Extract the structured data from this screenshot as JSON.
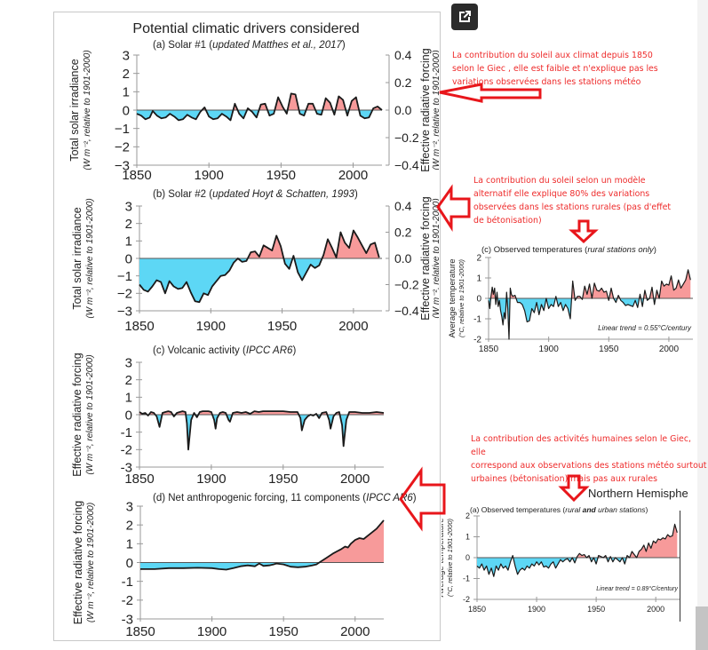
{
  "main_title": "Potential climatic drivers considered",
  "annotations": {
    "note1": [
      "La contribution du soleil aux climat depuis 1850",
      "selon le Giec , elle est faible et n'explique pas les",
      "variations observées dans les stations météo"
    ],
    "note2": [
      "La contribution du soleil selon un modèle",
      "alternatif elle explique 80% des variations",
      "observées dans les stations rurales  (pas d'effet",
      "de bétonisation)"
    ],
    "note3": [
      "La contribution des activités humaines  selon le Giec, elle",
      "correspond aux observations des stations météo surtout",
      "urbaines (bétonisation) mais pas aux rurales"
    ],
    "nh_title": "Northern Hemisphe",
    "open_external_icon": "open-in-new-icon",
    "arrow_color": "#e8161b",
    "text_color": "#ee2b2b"
  },
  "colors": {
    "positive": "#f79a9a",
    "negative": "#5dd7f5",
    "line": "#1a1a1a"
  },
  "chart_data": [
    {
      "id": "a",
      "type": "area",
      "title_plain": "(a) Solar #1 (",
      "title_italic": "updated Matthes et al., 2017",
      "title_end": ")",
      "ylabel": "Total solar irradiance",
      "ylabel2": "(W m⁻², relative to 1901-2000)",
      "y2label": "Effective radiative forcing",
      "y2label2": "(W m⁻², relative to 1901-2000)",
      "ylim": [
        -3,
        3
      ],
      "yticks": [
        "3",
        "2",
        "1",
        "0",
        "−1",
        "−2",
        "−3"
      ],
      "y2ticks": [
        "0.4",
        "0.2",
        "0.0",
        "−0.2",
        "−0.4"
      ],
      "xlim": [
        1850,
        2020
      ],
      "xticks": [
        "1850",
        "1900",
        "1950",
        "2000"
      ],
      "x": [
        1850,
        1853,
        1856,
        1859,
        1861,
        1864,
        1867,
        1870,
        1873,
        1876,
        1879,
        1882,
        1885,
        1888,
        1891,
        1894,
        1897,
        1900,
        1903,
        1906,
        1909,
        1912,
        1915,
        1918,
        1921,
        1924,
        1927,
        1930,
        1933,
        1936,
        1939,
        1942,
        1945,
        1948,
        1951,
        1954,
        1957,
        1960,
        1963,
        1966,
        1969,
        1972,
        1975,
        1978,
        1981,
        1984,
        1987,
        1990,
        1993,
        1996,
        1999,
        2002,
        2005,
        2008,
        2011,
        2014,
        2017,
        2020
      ],
      "values": [
        -0.2,
        -0.3,
        -0.5,
        -0.4,
        -0.05,
        -0.3,
        -0.45,
        -0.4,
        -0.2,
        -0.35,
        -0.55,
        -0.5,
        -0.25,
        -0.4,
        -0.5,
        -0.1,
        0.15,
        -0.35,
        -0.5,
        -0.45,
        -0.2,
        -0.35,
        -0.55,
        0.35,
        -0.2,
        -0.45,
        0.1,
        -0.1,
        -0.4,
        0.3,
        0.35,
        -0.3,
        -0.2,
        0.7,
        0.2,
        -0.2,
        0.9,
        0.85,
        -0.2,
        -0.3,
        0.35,
        0.35,
        -0.2,
        -0.25,
        0.65,
        0.4,
        -0.25,
        0.75,
        0.55,
        -0.3,
        0.5,
        0.7,
        -0.3,
        -0.45,
        -0.4,
        0.1,
        0.2,
        0.0
      ]
    },
    {
      "id": "b",
      "type": "area",
      "title_plain": "(b) Solar #2 (",
      "title_italic": "updated Hoyt & Schatten, 1993",
      "title_end": ")",
      "ylabel": "Total solar irradiance",
      "ylabel2": "(W m⁻², relative to 1901-2000)",
      "y2label": "Effective radiative forcing",
      "y2label2": "(W m⁻², relative to 1901-2000)",
      "ylim": [
        -3,
        3
      ],
      "yticks": [
        "3",
        "2",
        "1",
        "0",
        "−1",
        "−2",
        "−3"
      ],
      "y2ticks": [
        "0.4",
        "0.2",
        "0.0",
        "−0.2",
        "−0.4"
      ],
      "xlim": [
        1850,
        2020
      ],
      "xticks": [
        "1850",
        "1900",
        "1950",
        "2000"
      ],
      "x": [
        1850,
        1853,
        1856,
        1859,
        1862,
        1865,
        1868,
        1871,
        1874,
        1877,
        1880,
        1883,
        1886,
        1889,
        1892,
        1895,
        1898,
        1901,
        1904,
        1907,
        1910,
        1913,
        1916,
        1919,
        1922,
        1925,
        1928,
        1931,
        1934,
        1937,
        1940,
        1943,
        1946,
        1949,
        1952,
        1955,
        1958,
        1961,
        1964,
        1967,
        1970,
        1973,
        1976,
        1979,
        1982,
        1985,
        1988,
        1991,
        1994,
        1997,
        2000,
        2003,
        2006,
        2009,
        2012,
        2015,
        2018
      ],
      "values": [
        -1.5,
        -1.8,
        -1.9,
        -1.6,
        -1.25,
        -1.35,
        -2.0,
        -1.3,
        -1.6,
        -1.75,
        -1.7,
        -1.35,
        -1.95,
        -2.45,
        -2.5,
        -2.0,
        -2.1,
        -1.6,
        -1.3,
        -1.0,
        -0.95,
        -0.7,
        -0.25,
        0.0,
        -0.2,
        -0.15,
        0.35,
        0.4,
        0.1,
        0.75,
        0.6,
        0.45,
        1.3,
        0.7,
        -0.3,
        -0.6,
        0.15,
        -0.8,
        -1.25,
        -0.8,
        -0.35,
        -0.55,
        -0.4,
        0.2,
        1.1,
        0.6,
        0.05,
        1.5,
        0.9,
        0.6,
        1.6,
        1.2,
        0.75,
        0.3,
        0.8,
        0.9,
        0.05
      ]
    },
    {
      "id": "c",
      "type": "area",
      "title_plain": "(c) Volcanic activity (",
      "title_italic": "IPCC AR6",
      "title_end": ")",
      "ylabel": "Effective radiative forcing",
      "ylabel2": "(W m⁻², relative to 1901-2000)",
      "ylim": [
        -3,
        3
      ],
      "yticks": [
        "3",
        "2",
        "1",
        "0",
        "-1",
        "-2",
        "-3"
      ],
      "xlim": [
        1850,
        2020
      ],
      "xticks": [
        "1850",
        "1900",
        "1950",
        "2000"
      ],
      "x": [
        1850,
        1852,
        1854,
        1856,
        1858,
        1860,
        1862,
        1864,
        1866,
        1868,
        1870,
        1872,
        1874,
        1876,
        1878,
        1880,
        1882,
        1883,
        1884,
        1886,
        1888,
        1890,
        1892,
        1894,
        1896,
        1898,
        1900,
        1902,
        1903,
        1904,
        1906,
        1908,
        1910,
        1912,
        1913,
        1915,
        1918,
        1921,
        1924,
        1927,
        1930,
        1933,
        1936,
        1940,
        1945,
        1950,
        1955,
        1960,
        1962,
        1963,
        1965,
        1967,
        1969,
        1971,
        1973,
        1975,
        1977,
        1980,
        1982,
        1983,
        1985,
        1987,
        1989,
        1991,
        1992,
        1994,
        1996,
        2000,
        2005,
        2010,
        2015,
        2020
      ],
      "values": [
        0.15,
        0.05,
        0.1,
        -0.05,
        0.15,
        0.1,
        -0.1,
        -0.7,
        0.1,
        0.15,
        0.2,
        0.15,
        -0.1,
        0.1,
        0.15,
        0.2,
        0.15,
        -0.5,
        -2.0,
        -0.3,
        0.1,
        -0.15,
        0.15,
        0.2,
        0.2,
        0.2,
        0.15,
        -0.3,
        -0.8,
        -0.2,
        0.1,
        0.15,
        0.1,
        -0.3,
        -0.4,
        0.1,
        0.15,
        0.1,
        0.15,
        0.05,
        0.2,
        0.15,
        0.2,
        0.2,
        0.2,
        0.2,
        0.15,
        0.15,
        -0.2,
        -0.9,
        -0.3,
        -0.1,
        0.0,
        -0.05,
        0.05,
        -0.2,
        0.1,
        0.15,
        -0.3,
        -0.8,
        -0.1,
        0.1,
        0.15,
        -0.6,
        -1.8,
        -0.3,
        0.15,
        0.15,
        0.1,
        0.1,
        0.15,
        0.1
      ]
    },
    {
      "id": "d",
      "type": "area",
      "title_plain": "(d) Net anthropogenic forcing, 11 components (",
      "title_italic": "IPCC AR6",
      "title_end": ")",
      "ylabel": "Effective radiative forcing",
      "ylabel2": "(W m⁻², relative to 1901-2000)",
      "ylim": [
        -3,
        3
      ],
      "yticks": [
        "3",
        "2",
        "1",
        "0",
        "-1",
        "-2",
        "-3"
      ],
      "xlim": [
        1850,
        2020
      ],
      "xticks": [
        "1850",
        "1900",
        "1950",
        "2000"
      ],
      "x": [
        1850,
        1860,
        1870,
        1880,
        1890,
        1900,
        1905,
        1910,
        1915,
        1920,
        1925,
        1930,
        1933,
        1936,
        1940,
        1943,
        1945,
        1950,
        1955,
        1960,
        1965,
        1970,
        1973,
        1976,
        1980,
        1985,
        1990,
        1993,
        1995,
        1997,
        2000,
        2003,
        2006,
        2010,
        2015,
        2020
      ],
      "values": [
        -0.35,
        -0.35,
        -0.3,
        -0.3,
        -0.28,
        -0.3,
        -0.35,
        -0.38,
        -0.3,
        -0.2,
        -0.15,
        -0.2,
        -0.05,
        -0.18,
        -0.15,
        -0.1,
        -0.05,
        -0.1,
        -0.22,
        -0.25,
        -0.22,
        -0.15,
        -0.1,
        0.05,
        0.25,
        0.5,
        0.7,
        0.85,
        0.8,
        1.0,
        1.2,
        1.3,
        1.25,
        1.5,
        1.8,
        2.25
      ]
    },
    {
      "id": "rural",
      "type": "area",
      "title_plain": "(c) Observed temperatures (",
      "title_italic": "rural stations only",
      "title_end": ")",
      "ylabel": "Average temperature",
      "ylabel2": "(°C, relative to 1901-2000)",
      "ylim": [
        -2,
        2
      ],
      "yticks": [
        "2",
        "1",
        "0",
        "-1",
        "-2"
      ],
      "xlim": [
        1850,
        2020
      ],
      "xticks": [
        "1850",
        "1900",
        "1950",
        "2000"
      ],
      "annotation": "Linear trend = 0.55°C/century",
      "x": [
        1850,
        1851,
        1852,
        1853,
        1854,
        1855,
        1856,
        1857,
        1858,
        1859,
        1860,
        1861,
        1862,
        1863,
        1864,
        1865,
        1866,
        1867,
        1868,
        1869,
        1870,
        1872,
        1874,
        1876,
        1878,
        1880,
        1882,
        1884,
        1886,
        1888,
        1890,
        1892,
        1894,
        1896,
        1898,
        1900,
        1902,
        1904,
        1906,
        1908,
        1910,
        1912,
        1914,
        1916,
        1918,
        1920,
        1922,
        1924,
        1926,
        1928,
        1930,
        1932,
        1934,
        1936,
        1938,
        1940,
        1942,
        1944,
        1946,
        1948,
        1950,
        1952,
        1954,
        1956,
        1958,
        1960,
        1962,
        1964,
        1966,
        1968,
        1970,
        1972,
        1974,
        1976,
        1978,
        1980,
        1982,
        1984,
        1986,
        1988,
        1990,
        1992,
        1994,
        1996,
        1998,
        2000,
        2002,
        2004,
        2006,
        2008,
        2010,
        2012,
        2014,
        2016,
        2018
      ],
      "values": [
        -0.1,
        -0.5,
        0.1,
        0.55,
        0.2,
        0.5,
        -0.3,
        0.3,
        -0.4,
        -0.1,
        -0.6,
        -0.9,
        -1.3,
        -0.7,
        -1.0,
        0.3,
        -0.5,
        -2.0,
        0.5,
        0.2,
        0.1,
        0.15,
        -0.2,
        -0.2,
        -0.3,
        -0.6,
        -1.15,
        -1.1,
        -0.5,
        -0.7,
        -0.2,
        -0.8,
        -0.3,
        -0.6,
        0.0,
        -0.5,
        -0.3,
        -0.4,
        0.1,
        -0.4,
        -0.2,
        -0.6,
        -0.3,
        -0.5,
        -1.0,
        0.85,
        -0.1,
        0.1,
        0.1,
        -0.05,
        0.6,
        0.2,
        0.7,
        0.0,
        0.75,
        0.4,
        0.35,
        0.5,
        0.3,
        0.35,
        -0.1,
        0.5,
        0.0,
        -0.2,
        0.15,
        -0.1,
        -0.2,
        -0.35,
        -0.3,
        -0.35,
        -0.4,
        -0.1,
        -0.45,
        0.2,
        -0.4,
        0.4,
        -0.1,
        0.0,
        0.55,
        -0.3,
        0.4,
        0.0,
        0.85,
        0.6,
        0.7,
        0.65,
        1.1,
        0.4,
        0.5,
        0.9,
        0.5,
        0.7,
        0.9,
        1.4,
        0.9
      ]
    },
    {
      "id": "nh",
      "type": "area",
      "title_plain": "(a) Observed temperatures (",
      "title_italic": "rural ",
      "title_bold": "and",
      "title_italic2": " urban stations",
      "title_end": ")",
      "ylabel": "Average temperature",
      "ylabel2": "(°C, relative to 1901-2000)",
      "ylim": [
        -2,
        2
      ],
      "yticks": [
        "2",
        "1",
        "0",
        "-1",
        "-2"
      ],
      "xlim": [
        1850,
        2020
      ],
      "xticks": [
        "1850",
        "1900",
        "1950",
        "2000"
      ],
      "annotation": "Linear trend = 0.89°C/century",
      "x": [
        1850,
        1852,
        1854,
        1856,
        1858,
        1860,
        1862,
        1864,
        1866,
        1868,
        1870,
        1872,
        1874,
        1876,
        1878,
        1880,
        1882,
        1884,
        1886,
        1888,
        1890,
        1892,
        1894,
        1896,
        1898,
        1900,
        1902,
        1904,
        1906,
        1908,
        1910,
        1912,
        1914,
        1916,
        1918,
        1920,
        1922,
        1924,
        1926,
        1928,
        1930,
        1932,
        1934,
        1936,
        1938,
        1940,
        1942,
        1944,
        1946,
        1948,
        1950,
        1952,
        1954,
        1956,
        1958,
        1960,
        1962,
        1964,
        1966,
        1968,
        1970,
        1972,
        1974,
        1976,
        1978,
        1980,
        1982,
        1984,
        1986,
        1988,
        1990,
        1992,
        1994,
        1996,
        1998,
        2000,
        2002,
        2004,
        2006,
        2008,
        2010,
        2012,
        2014,
        2016,
        2018
      ],
      "values": [
        -0.4,
        -0.5,
        -0.3,
        -0.6,
        -0.4,
        -0.8,
        -0.5,
        -0.9,
        -0.4,
        -0.6,
        -0.3,
        -0.5,
        -0.4,
        -0.6,
        -0.2,
        0.1,
        -0.4,
        -0.8,
        -0.6,
        -0.5,
        -0.6,
        -0.4,
        -0.5,
        -0.3,
        -0.4,
        -0.2,
        -0.35,
        -0.2,
        -0.45,
        -0.4,
        -0.5,
        -0.3,
        -0.2,
        -0.5,
        -0.3,
        -0.1,
        -0.2,
        -0.1,
        -0.05,
        -0.2,
        0.0,
        -0.25,
        0.05,
        0.2,
        0.1,
        0.15,
        0.0,
        0.1,
        -0.2,
        0.0,
        -0.3,
        0.1,
        0.05,
        0.0,
        0.1,
        -0.2,
        0.05,
        -0.2,
        0.0,
        -0.1,
        -0.2,
        0.0,
        -0.3,
        0.1,
        0.0,
        0.3,
        0.15,
        0.0,
        0.3,
        0.4,
        0.6,
        0.3,
        0.7,
        0.45,
        0.8,
        0.7,
        0.9,
        0.85,
        0.95,
        0.9,
        1.1,
        1.0,
        1.05,
        1.6,
        1.2
      ]
    }
  ]
}
